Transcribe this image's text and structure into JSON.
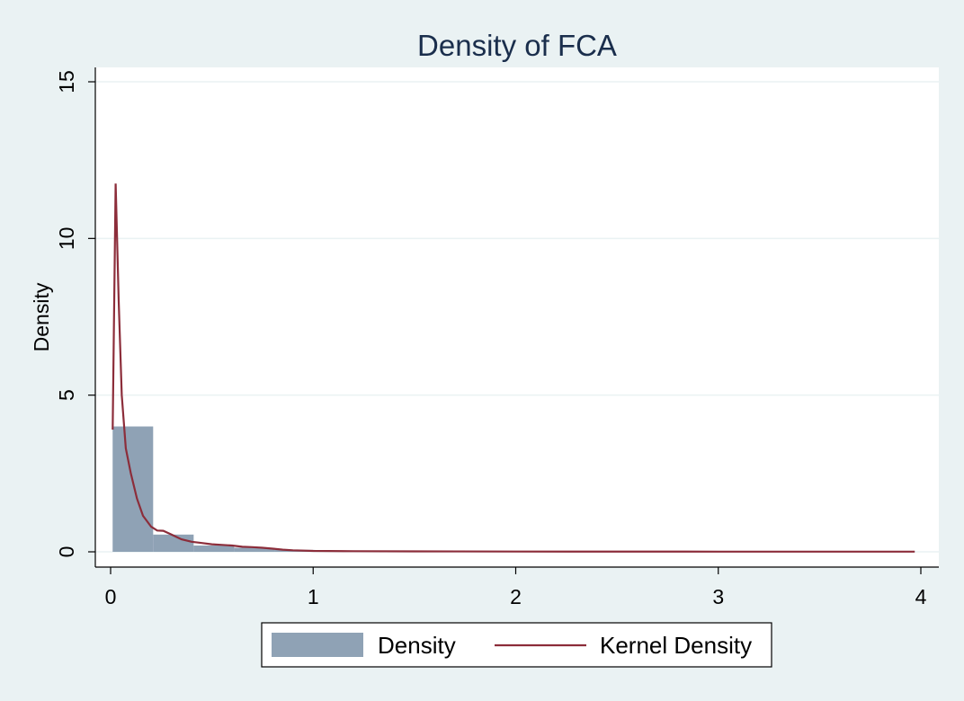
{
  "chart_data": {
    "type": "bar",
    "title": "Density of FCA",
    "xlabel": "",
    "ylabel": "Density",
    "xlim": [
      0,
      4
    ],
    "ylim": [
      0,
      15
    ],
    "xticks": [
      "0",
      "1",
      "2",
      "3",
      "4"
    ],
    "yticks": [
      "0",
      "5",
      "10",
      "15"
    ],
    "grid": true,
    "legend_position": "bottom",
    "histogram": {
      "name": "Density",
      "color": "#8fa2b5",
      "bins": [
        {
          "x0": 0.01,
          "x1": 0.21,
          "height": 4.0
        },
        {
          "x0": 0.21,
          "x1": 0.41,
          "height": 0.55
        },
        {
          "x0": 0.41,
          "x1": 0.61,
          "height": 0.2
        },
        {
          "x0": 0.61,
          "x1": 0.81,
          "height": 0.13
        },
        {
          "x0": 0.81,
          "x1": 1.01,
          "height": 0.06
        },
        {
          "x0": 1.01,
          "x1": 1.21,
          "height": 0.03
        },
        {
          "x0": 1.21,
          "x1": 3.97,
          "height": 0.02
        }
      ]
    },
    "kernel": {
      "name": "Kernel Density",
      "color": "#8c2d3a",
      "points": [
        [
          0.01,
          3.9
        ],
        [
          0.025,
          11.75
        ],
        [
          0.04,
          8.0
        ],
        [
          0.055,
          5.0
        ],
        [
          0.075,
          3.3
        ],
        [
          0.1,
          2.5
        ],
        [
          0.13,
          1.7
        ],
        [
          0.16,
          1.15
        ],
        [
          0.2,
          0.8
        ],
        [
          0.23,
          0.68
        ],
        [
          0.26,
          0.67
        ],
        [
          0.3,
          0.55
        ],
        [
          0.35,
          0.4
        ],
        [
          0.4,
          0.32
        ],
        [
          0.45,
          0.28
        ],
        [
          0.5,
          0.24
        ],
        [
          0.55,
          0.22
        ],
        [
          0.6,
          0.2
        ],
        [
          0.65,
          0.16
        ],
        [
          0.7,
          0.15
        ],
        [
          0.75,
          0.13
        ],
        [
          0.8,
          0.1
        ],
        [
          0.85,
          0.07
        ],
        [
          0.9,
          0.05
        ],
        [
          1.0,
          0.03
        ],
        [
          1.2,
          0.02
        ],
        [
          1.5,
          0.015
        ],
        [
          2.0,
          0.01
        ],
        [
          3.0,
          0.005
        ],
        [
          3.97,
          0.005
        ]
      ]
    }
  },
  "legend": {
    "items": [
      "Density",
      "Kernel Density"
    ]
  }
}
